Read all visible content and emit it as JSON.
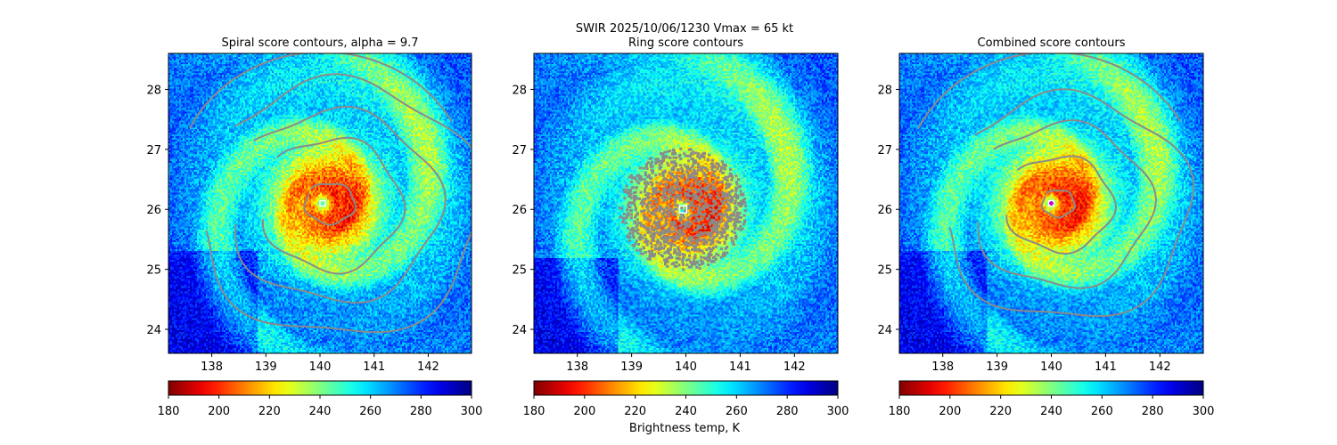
{
  "figure": {
    "suptitle_line1": "SWIR  2025/10/06/1230    Vmax = 65 kt",
    "colorbar_label": "Brightness temp, K",
    "colormap": "jet_r",
    "contour_color": "#8a8a8a"
  },
  "chart_data": [
    {
      "type": "heatmap",
      "title": "Spiral score contours, alpha =  9.7",
      "x_ticks": [
        138,
        139,
        140,
        141,
        142
      ],
      "y_ticks": [
        24,
        25,
        26,
        27,
        28
      ],
      "xlim": [
        137.2,
        142.8
      ],
      "ylim": [
        23.6,
        28.6
      ],
      "center": [
        140.05,
        26.1
      ],
      "colorbar": {
        "ticks": [
          180,
          200,
          220,
          240,
          260,
          280,
          300
        ],
        "range": [
          180,
          300
        ]
      },
      "overlay": "spiral contours"
    },
    {
      "type": "heatmap",
      "title": "Ring score contours",
      "x_ticks": [
        138,
        139,
        140,
        141,
        142
      ],
      "y_ticks": [
        24,
        25,
        26,
        27,
        28
      ],
      "xlim": [
        137.2,
        142.8
      ],
      "ylim": [
        23.6,
        28.6
      ],
      "center": [
        139.95,
        26.0
      ],
      "colorbar": {
        "ticks": [
          180,
          200,
          220,
          240,
          260,
          280,
          300
        ],
        "range": [
          180,
          300
        ]
      },
      "overlay": "ring score scatter"
    },
    {
      "type": "heatmap",
      "title": "Combined score contours",
      "x_ticks": [
        138,
        139,
        140,
        141,
        142
      ],
      "y_ticks": [
        24,
        25,
        26,
        27,
        28
      ],
      "xlim": [
        137.2,
        142.8
      ],
      "ylim": [
        23.6,
        28.6
      ],
      "center": [
        140.0,
        26.1
      ],
      "colorbar": {
        "ticks": [
          180,
          200,
          220,
          240,
          260,
          280,
          300
        ],
        "range": [
          180,
          300
        ]
      },
      "overlay": "combined contours"
    }
  ]
}
